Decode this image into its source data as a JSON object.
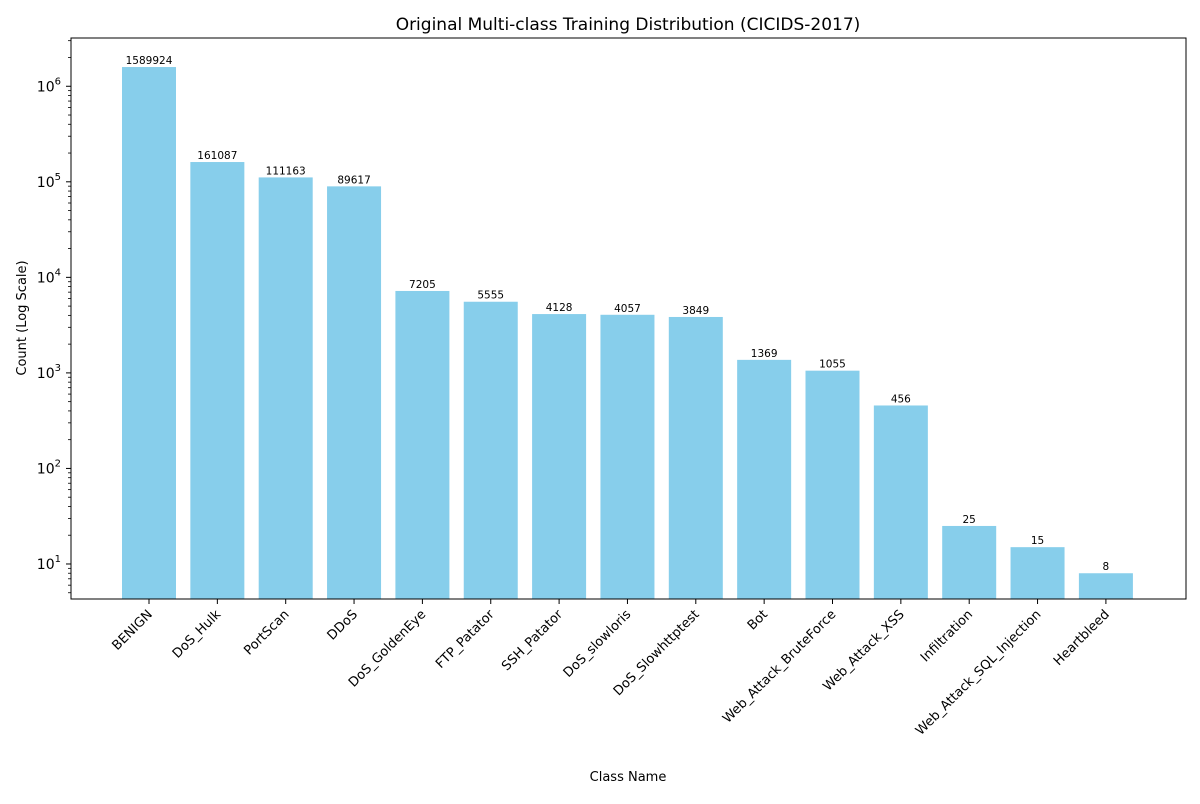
{
  "chart_data": {
    "type": "bar",
    "title": "Original Multi-class Training Distribution (CICIDS-2017)",
    "xlabel": "Class Name",
    "ylabel": "Count (Log Scale)",
    "yscale": "log",
    "ylim": [
      4.3,
      3200000
    ],
    "yticks": [
      {
        "value": 10,
        "base": "10",
        "exp": "1"
      },
      {
        "value": 100,
        "base": "10",
        "exp": "2"
      },
      {
        "value": 1000,
        "base": "10",
        "exp": "3"
      },
      {
        "value": 10000,
        "base": "10",
        "exp": "4"
      },
      {
        "value": 100000,
        "base": "10",
        "exp": "5"
      },
      {
        "value": 1000000,
        "base": "10",
        "exp": "6"
      }
    ],
    "bar_color": "#87ceeb",
    "categories": [
      "BENIGN",
      "DoS_Hulk",
      "PortScan",
      "DDoS",
      "DoS_GoldenEye",
      "FTP_Patator",
      "SSH_Patator",
      "DoS_slowloris",
      "DoS_Slowhttptest",
      "Bot",
      "Web_Attack_BruteForce",
      "Web_Attack_XSS",
      "Infiltration",
      "Web_Attack_SQL_Injection",
      "Heartbleed"
    ],
    "values": [
      1589924,
      161087,
      111163,
      89617,
      7205,
      5555,
      4128,
      4057,
      3849,
      1369,
      1055,
      456,
      25,
      15,
      8
    ],
    "data_labels": [
      "1589924",
      "161087",
      "111163",
      "89617",
      "7205",
      "5555",
      "4128",
      "4057",
      "3849",
      "1369",
      "1055",
      "456",
      "25",
      "15",
      "8"
    ],
    "grid": false,
    "legend": "none"
  }
}
